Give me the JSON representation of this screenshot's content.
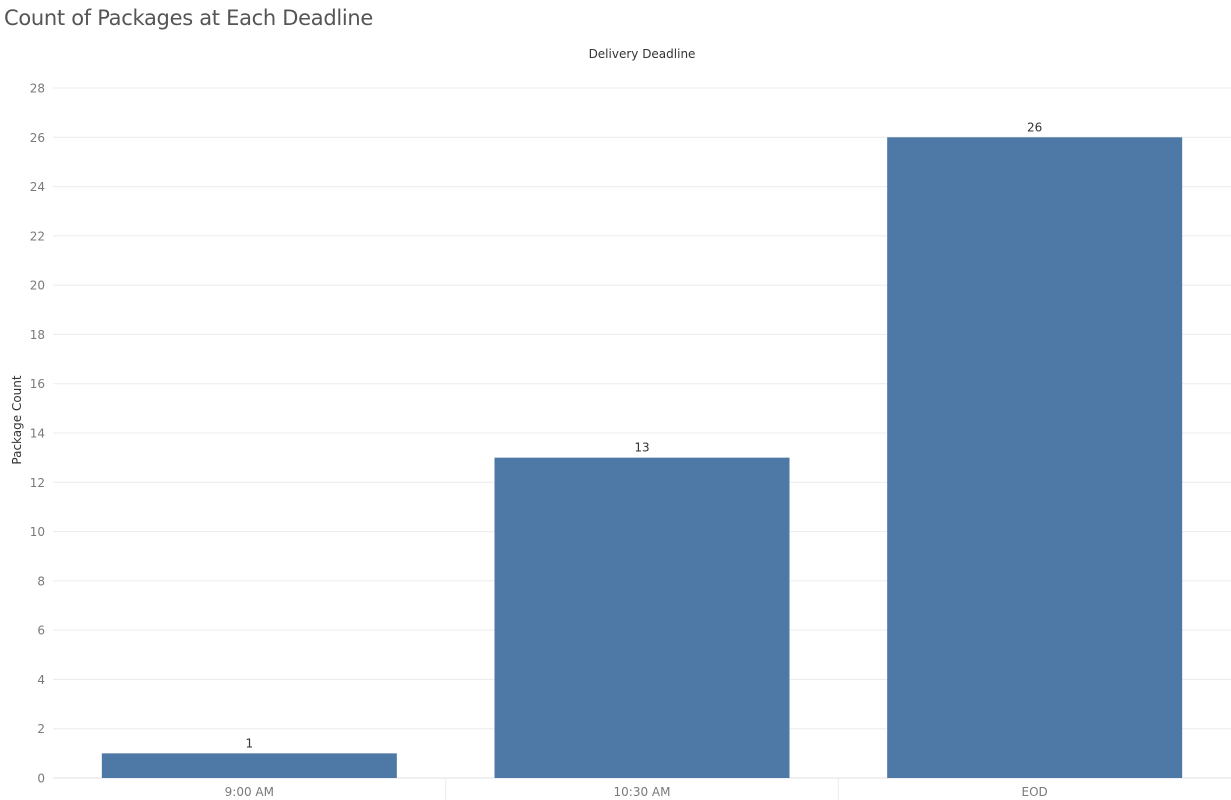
{
  "title": "Count of Packages at Each Deadline",
  "chart_data": {
    "type": "bar",
    "title": "Count of Packages at Each Deadline",
    "column_header": "Delivery Deadline",
    "xlabel": "",
    "ylabel": "Package Count",
    "categories": [
      "9:00 AM",
      "10:30 AM",
      "EOD"
    ],
    "values": [
      1,
      13,
      26
    ],
    "data_labels": [
      "1",
      "13",
      "26"
    ],
    "ylim": [
      0,
      28
    ],
    "yticks": [
      0,
      2,
      4,
      6,
      8,
      10,
      12,
      14,
      16,
      18,
      20,
      22,
      24,
      26,
      28
    ],
    "grid": true,
    "legend": "none",
    "bar_color": "#4e79a7"
  }
}
